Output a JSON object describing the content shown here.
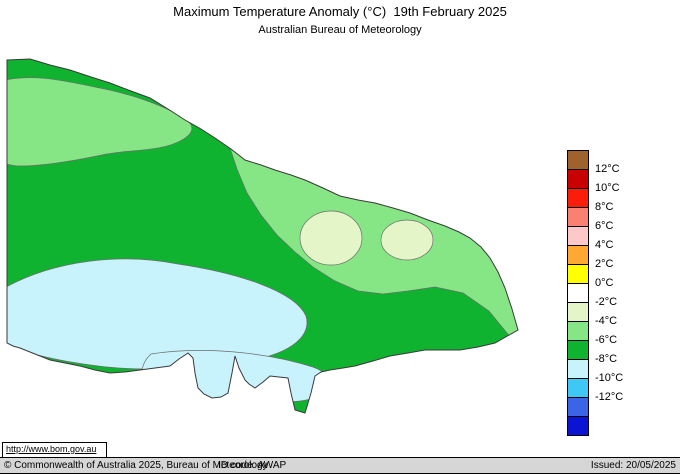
{
  "header": {
    "title": "Maximum Temperature Anomaly (°C)  19th February 2025",
    "subtitle": "Australian Bureau of Meteorology"
  },
  "legend": {
    "colors": [
      "#a0622d",
      "#c80000",
      "#fa1e0a",
      "#fa8072",
      "#ffc8c8",
      "#ffa834",
      "#ffff00",
      "#ffffff",
      "#e4f5c8",
      "#86e686",
      "#0fb32f",
      "#c8f3fd",
      "#3fc8f5",
      "#3c64e6",
      "#0a14d2"
    ],
    "labels": [
      "12°C",
      "10°C",
      "8°C",
      "6°C",
      "4°C",
      "2°C",
      "0°C",
      "-2°C",
      "-4°C",
      "-6°C",
      "-8°C",
      "-10°C",
      "-12°C"
    ]
  },
  "map": {
    "colors": {
      "green": "#0fb32f",
      "light_green": "#86e686",
      "pale_green": "#e4f5c8",
      "pale_cyan": "#c8f3fd"
    }
  },
  "footer": {
    "url": "http://www.bom.gov.au",
    "copyright": "© Commonwealth of Australia 2025, Bureau of Meteorology",
    "id_code": "ID code: AWAP",
    "issued": "Issued: 20/05/2025"
  }
}
